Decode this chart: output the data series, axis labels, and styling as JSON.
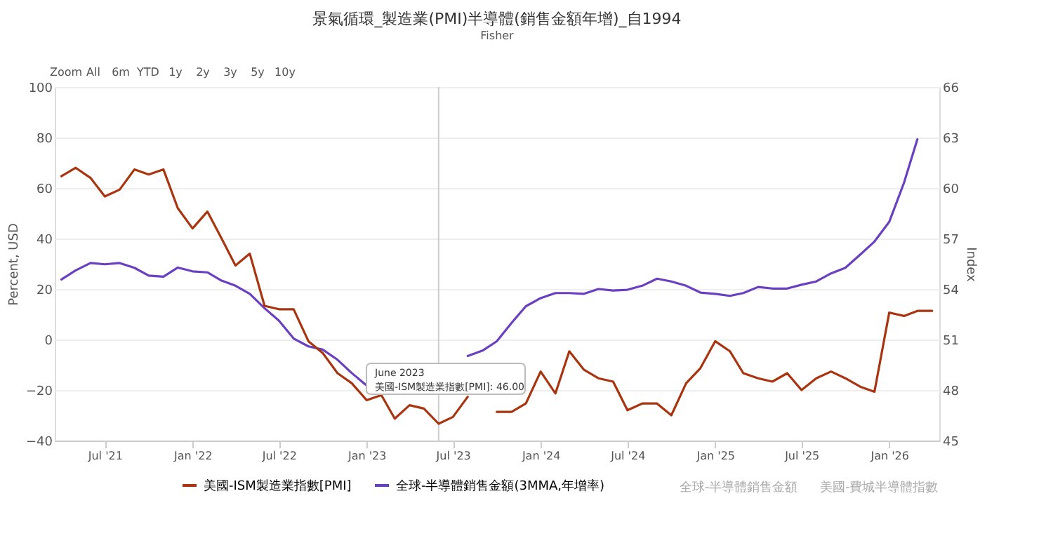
{
  "chart_data": {
    "type": "line",
    "title": "景氣循環_製造業(PMI)半導體(銷售金額年增)_自1994",
    "subtitle": "Fisher",
    "ylabel": "Percent, USD",
    "y2label": "Index",
    "xlim": [
      "2021-03-18",
      "2026-04-16"
    ],
    "xticks": [
      {
        "value": "2021-07",
        "label": "Jul '21"
      },
      {
        "value": "2022-01",
        "label": "Jan '22"
      },
      {
        "value": "2022-07",
        "label": "Jul '22"
      },
      {
        "value": "2023-01",
        "label": "Jan '23"
      },
      {
        "value": "2023-07",
        "label": "Jul '23"
      },
      {
        "value": "2024-01",
        "label": "Jan '24"
      },
      {
        "value": "2024-07",
        "label": "Jul '24"
      },
      {
        "value": "2025-01",
        "label": "Jan '25"
      },
      {
        "value": "2025-07",
        "label": "Jul '25"
      },
      {
        "value": "2026-01",
        "label": "Jan '26"
      }
    ],
    "ylim": [
      -40,
      100
    ],
    "yticks": [
      -40,
      -20,
      0,
      20,
      40,
      60,
      80,
      100
    ],
    "y2lim": [
      45,
      66
    ],
    "y2ticks": [
      45,
      48,
      51,
      54,
      57,
      60,
      63,
      66
    ],
    "grid": "y",
    "legend": "bottom",
    "marker": "none",
    "line_style": "solid",
    "series": [
      {
        "name": "美國-ISM製造業指數[PMI]",
        "color": "#a8350f",
        "axis": "y2",
        "x": [
          "2021-04",
          "2021-05",
          "2021-06",
          "2021-07",
          "2021-08",
          "2021-09",
          "2021-10",
          "2021-11",
          "2021-12",
          "2022-01",
          "2022-02",
          "2022-03",
          "2022-04",
          "2022-05",
          "2022-06",
          "2022-07",
          "2022-08",
          "2022-09",
          "2022-10",
          "2022-11",
          "2022-12",
          "2023-01",
          "2023-02",
          "2023-03",
          "2023-04",
          "2023-05",
          "2023-06",
          "2023-07",
          "2023-08",
          "2023-09",
          "2023-10",
          "2023-11",
          "2023-12",
          "2024-01",
          "2024-02",
          "2024-03",
          "2024-04",
          "2024-05",
          "2024-06",
          "2024-07",
          "2024-08",
          "2024-09",
          "2024-10",
          "2024-11",
          "2024-12",
          "2025-01",
          "2025-02",
          "2025-03",
          "2025-04",
          "2025-05",
          "2025-06",
          "2025-07",
          "2025-08",
          "2025-09",
          "2025-10",
          "2025-11",
          "2025-12",
          "2026-01",
          "2026-02",
          "2026-03",
          "2026-04"
        ],
        "values": [
          60.7,
          61.2,
          60.6,
          59.5,
          59.9,
          61.1,
          60.8,
          61.1,
          58.8,
          57.6,
          58.6,
          57.1,
          55.4,
          56.1,
          53.0,
          52.8,
          52.8,
          50.9,
          50.2,
          49.0,
          48.4,
          47.4,
          47.7,
          46.3,
          47.1,
          46.9,
          46.0,
          46.4,
          47.6,
          null,
          46.7,
          46.7,
          47.2,
          49.1,
          47.8,
          50.3,
          49.2,
          48.7,
          48.5,
          46.8,
          47.2,
          47.2,
          46.5,
          48.4,
          49.3,
          50.9,
          50.3,
          49.0,
          48.7,
          48.5,
          49.0,
          48.0,
          48.7,
          49.1,
          48.7,
          48.2,
          47.9,
          52.6,
          52.4,
          52.7,
          52.7
        ]
      },
      {
        "name": "全球-半導體銷售金額(3MMA,年增率)",
        "color": "#6a3fc0",
        "axis": "y",
        "x": [
          "2021-04",
          "2021-05",
          "2021-06",
          "2021-07",
          "2021-08",
          "2021-09",
          "2021-10",
          "2021-11",
          "2021-12",
          "2022-01",
          "2022-02",
          "2022-03",
          "2022-04",
          "2022-05",
          "2022-06",
          "2022-07",
          "2022-08",
          "2022-09",
          "2022-10",
          "2022-11",
          "2022-12",
          "2023-01",
          "2023-02",
          "2023-03",
          "2023-04",
          "2023-05",
          "2023-06",
          "2023-07",
          "2023-08",
          "2023-09",
          "2023-10",
          "2023-11",
          "2023-12",
          "2024-01",
          "2024-02",
          "2024-03",
          "2024-04",
          "2024-05",
          "2024-06",
          "2024-07",
          "2024-08",
          "2024-09",
          "2024-10",
          "2024-11",
          "2024-12",
          "2025-01",
          "2025-02",
          "2025-03",
          "2025-04",
          "2025-05",
          "2025-06",
          "2025-07",
          "2025-08",
          "2025-09",
          "2025-10",
          "2025-11",
          "2025-12",
          "2026-01",
          "2026-02",
          "2026-03"
        ],
        "values": [
          23.8,
          27.4,
          30.3,
          29.8,
          30.3,
          28.4,
          25.3,
          24.9,
          28.5,
          27.0,
          26.6,
          23.5,
          21.3,
          18.1,
          12.4,
          7.5,
          0.4,
          -2.7,
          -4.0,
          -8.0,
          -13.3,
          -18.2,
          null,
          null,
          null,
          null,
          null,
          null,
          -6.5,
          -4.4,
          -0.7,
          6.6,
          13.2,
          16.4,
          18.4,
          18.4,
          18.1,
          20.0,
          19.4,
          19.7,
          21.3,
          24.1,
          23.0,
          21.3,
          18.6,
          18.1,
          17.3,
          18.4,
          20.8,
          20.2,
          20.2,
          21.7,
          23.0,
          26.2,
          28.4,
          33.6,
          38.8,
          46.6,
          62.1,
          79.3
        ]
      }
    ],
    "ref_lines": [
      {
        "axis": "x",
        "value": "2023-06",
        "color": "#cccccc"
      }
    ],
    "annotations": [
      "Zoom",
      "All",
      "6m",
      "YTD",
      "1y",
      "2y",
      "3y",
      "5y",
      "10y",
      "June 2023",
      "美國-ISM製造業指數[PMI]: 46.00",
      "全球-半導體銷售金額",
      "美國-費城半導體指數"
    ]
  }
}
